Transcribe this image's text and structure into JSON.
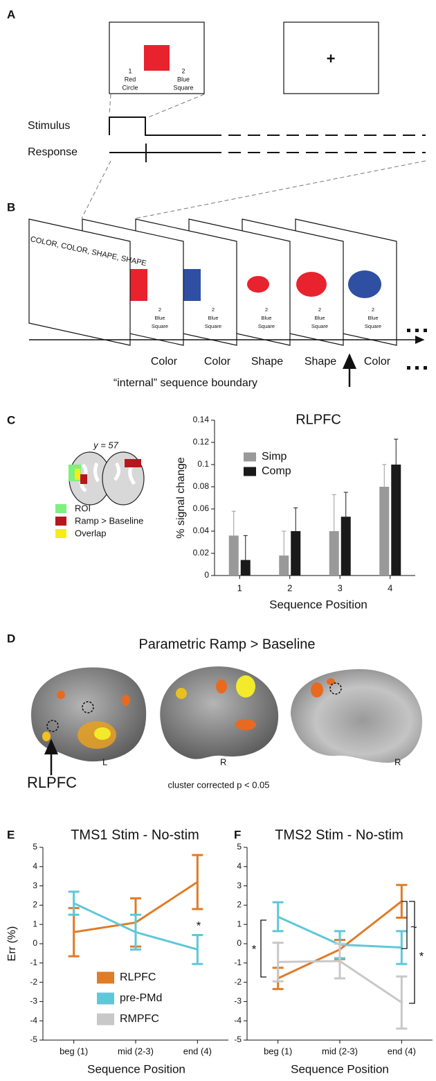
{
  "panels": {
    "a": {
      "label": "A",
      "left_choice": [
        "1",
        "Red",
        "Circle"
      ],
      "right_choice": [
        "2",
        "Blue",
        "Square"
      ],
      "fixation": "+",
      "stimulus": "Stimulus",
      "response": "Response"
    },
    "b": {
      "label": "B",
      "instruction": "COLOR, COLOR, SHAPE, SHAPE",
      "card_choice": [
        "2",
        "Blue",
        "Square"
      ],
      "trials": [
        "Color",
        "Color",
        "Shape",
        "Shape",
        "Color"
      ],
      "boundary": "“internal” sequence boundary"
    },
    "c": {
      "label": "C",
      "slice": "y = 57",
      "legend": [
        "ROI",
        "Ramp > Baseline",
        "Overlap"
      ]
    },
    "d": {
      "label": "D",
      "title": "Parametric Ramp > Baseline",
      "hemispheres": [
        "L",
        "R",
        "R"
      ],
      "region": "RLPFC",
      "note": "cluster corrected p < 0.05"
    },
    "e": {
      "label": "E"
    },
    "f": {
      "label": "F"
    }
  },
  "chart_data": [
    {
      "type": "bar",
      "title": "RLPFC",
      "xlabel": "Sequence Position",
      "ylabel": "% signal change",
      "categories": [
        "1",
        "2",
        "3",
        "4"
      ],
      "series": [
        {
          "name": "Simp",
          "color": "#999999",
          "values": [
            0.036,
            0.018,
            0.04,
            0.08
          ],
          "errors": [
            0.022,
            0.022,
            0.033,
            0.02
          ]
        },
        {
          "name": "Comp",
          "color": "#1a1a1a",
          "values": [
            0.014,
            0.04,
            0.053,
            0.1
          ],
          "errors": [
            0.022,
            0.021,
            0.022,
            0.023
          ]
        }
      ],
      "ylim": [
        0,
        0.14
      ],
      "yticks": [
        0,
        0.02,
        0.04,
        0.06,
        0.08,
        0.1,
        0.12,
        0.14
      ],
      "legend": "upper left"
    },
    {
      "type": "line",
      "title": "TMS1 Stim - No-stim",
      "xlabel": "Sequence Position",
      "ylabel": "Err (%)",
      "categories": [
        "beg (1)",
        "mid (2-3)",
        "end (4)"
      ],
      "series": [
        {
          "name": "RLPFC",
          "color": "#e07b26",
          "values": [
            0.6,
            1.1,
            3.2
          ],
          "errors": [
            1.25,
            1.25,
            1.4
          ]
        },
        {
          "name": "pre-PMd",
          "color": "#5ec8d8",
          "values": [
            2.1,
            0.6,
            -0.3
          ],
          "errors": [
            0.6,
            0.9,
            0.75
          ]
        },
        {
          "name": "RMPFC",
          "color": "#c8c8c8",
          "values": [
            null,
            null,
            null
          ],
          "errors": [
            null,
            null,
            null
          ]
        }
      ],
      "ylim": [
        -5,
        5
      ],
      "yticks": [
        -5,
        -4,
        -3,
        -2,
        -1,
        0,
        1,
        2,
        3,
        4,
        5
      ],
      "legend": "lower center",
      "annotations": [
        "*"
      ]
    },
    {
      "type": "line",
      "title": "TMS2 Stim - No-stim",
      "xlabel": "Sequence Position",
      "categories": [
        "beg (1)",
        "mid (2-3)",
        "end (4)"
      ],
      "series": [
        {
          "color": "#e07b26",
          "values": [
            -1.8,
            -0.3,
            2.2
          ],
          "errors": [
            0.55,
            0.5,
            0.85
          ]
        },
        {
          "color": "#5ec8d8",
          "values": [
            1.4,
            -0.05,
            -0.2
          ],
          "errors": [
            0.75,
            0.7,
            0.85
          ]
        },
        {
          "color": "#c8c8c8",
          "values": [
            -0.95,
            -0.9,
            -3.05
          ],
          "errors": [
            1.0,
            0.9,
            1.35
          ]
        }
      ],
      "ylim": [
        -5,
        5
      ],
      "yticks": [
        -5,
        -4,
        -3,
        -2,
        -1,
        0,
        1,
        2,
        3,
        4,
        5
      ],
      "annotations": [
        "*",
        "~",
        "*"
      ]
    }
  ]
}
